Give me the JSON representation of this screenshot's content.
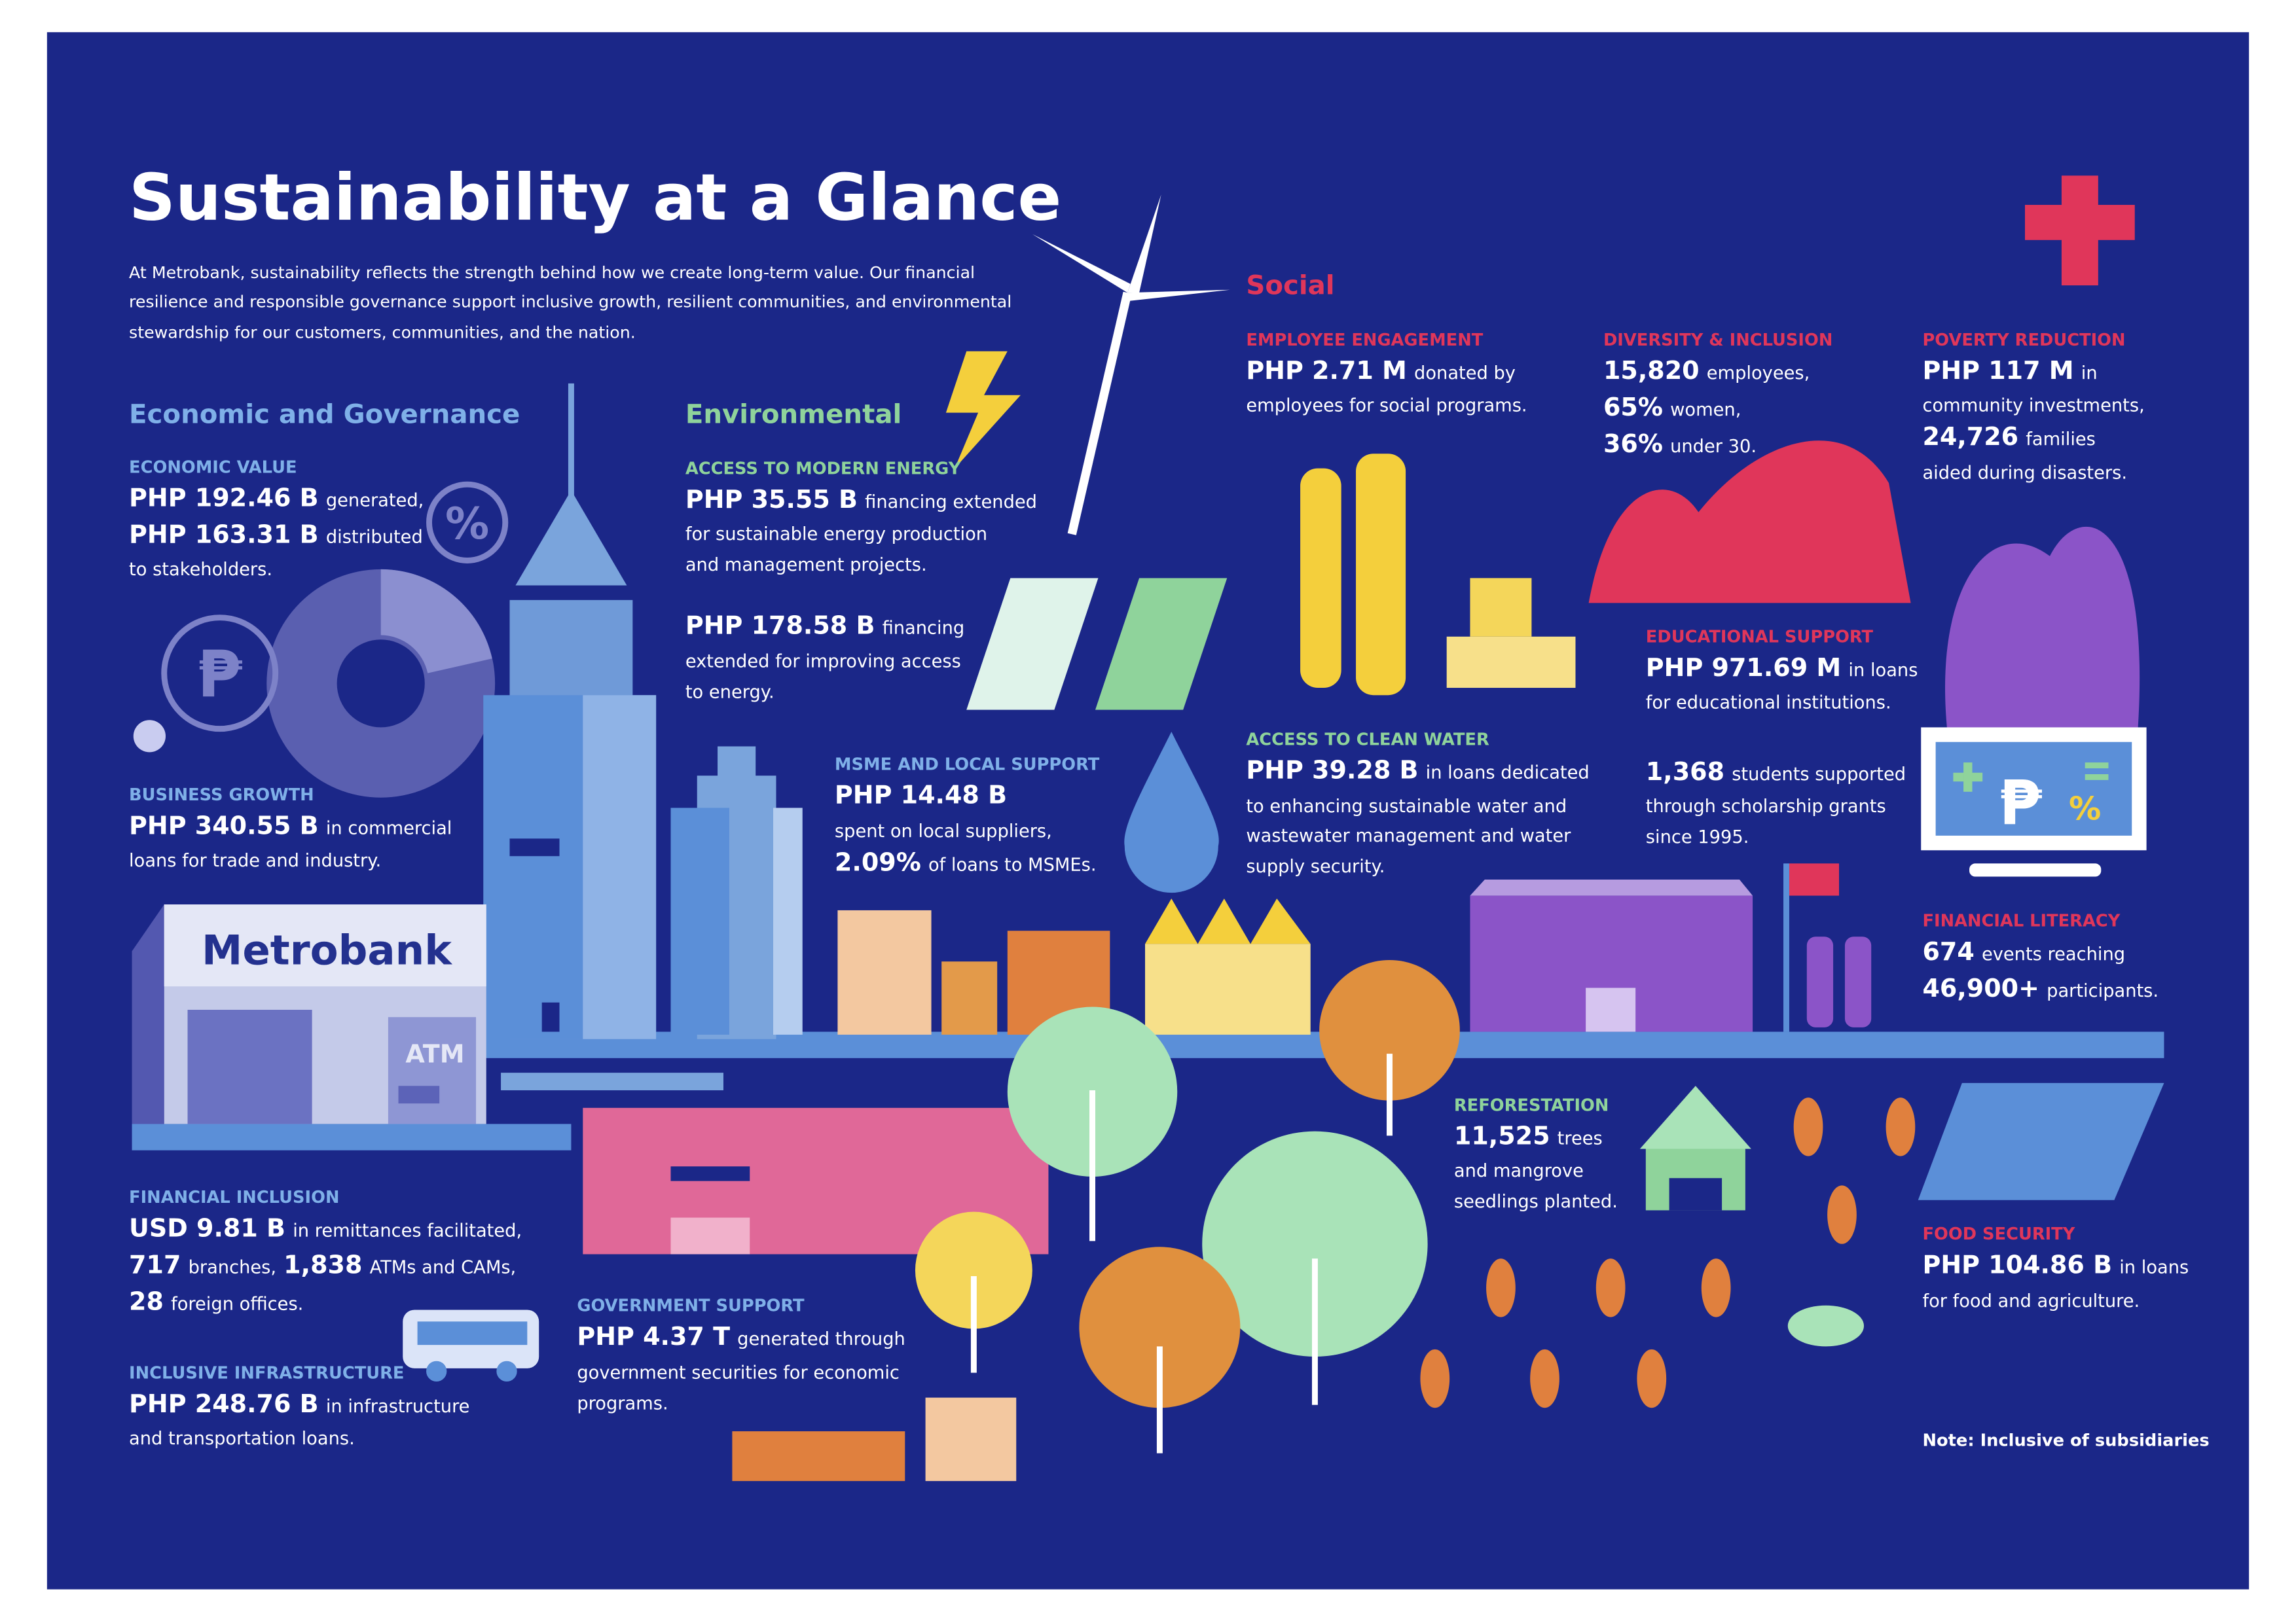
{
  "header": {
    "title": "Sustainability at a Glance",
    "intro": [
      "At Metrobank, sustainability reflects the strength behind how we create long-term value. Our financial",
      "resilience and responsible governance support inclusive growth, resilient communities, and environmental",
      "stewardship for our customers, communities, and the nation."
    ]
  },
  "sections": [
    {
      "title": "Economic and Governance"
    },
    {
      "title": "Environmental"
    },
    {
      "title": "Social"
    }
  ],
  "blocks": [
    {
      "heading": "ECONOMIC VALUE",
      "lines": [
        [
          {
            "strong": "PHP 192.46 B"
          },
          {
            "text": "generated,"
          }
        ],
        [
          {
            "strong": "PHP 163.31 B"
          },
          {
            "text": "distributed"
          }
        ],
        [
          {
            "text": "to stakeholders."
          }
        ]
      ]
    },
    {
      "heading": "BUSINESS GROWTH",
      "lines": [
        [
          {
            "strong": "PHP 340.55 B"
          },
          {
            "text": "in commercial"
          }
        ],
        [
          {
            "text": "loans for trade and industry."
          }
        ]
      ]
    },
    {
      "heading": "FINANCIAL INCLUSION",
      "lines": [
        [
          {
            "strong": "USD 9.81 B"
          },
          {
            "text": "in remittances facilitated,"
          }
        ],
        [
          {
            "strong": "717"
          },
          {
            "text": "branches,"
          },
          {
            "strong": "1,838"
          },
          {
            "text": "ATMs and CAMs,"
          }
        ],
        [
          {
            "strong": "28"
          },
          {
            "text": "foreign offices."
          }
        ]
      ]
    },
    {
      "heading": "INCLUSIVE INFRASTRUCTURE",
      "lines": [
        [
          {
            "strong": "PHP 248.76 B"
          },
          {
            "text": "in infrastructure"
          }
        ],
        [
          {
            "text": "and transportation loans."
          }
        ]
      ]
    },
    {
      "heading": "ACCESS TO MODERN ENERGY",
      "lines": [
        [
          {
            "strong": "PHP 35.55 B"
          },
          {
            "text": "financing extended"
          }
        ],
        [
          {
            "text": "for sustainable energy production"
          }
        ],
        [
          {
            "text": "and management projects."
          }
        ],
        [
          {
            "strong": "PHP 178.58 B"
          },
          {
            "text": "financing"
          }
        ],
        [
          {
            "text": "extended for improving access"
          }
        ],
        [
          {
            "text": "to energy."
          }
        ]
      ]
    },
    {
      "heading": "MSME AND LOCAL SUPPORT",
      "lines": [
        [
          {
            "strong": "PHP 14.48 B"
          }
        ],
        [
          {
            "text": "spent on local suppliers,"
          }
        ],
        [
          {
            "strong": "2.09%"
          },
          {
            "text": "of loans to MSMEs."
          }
        ]
      ]
    },
    {
      "heading": "GOVERNMENT SUPPORT",
      "lines": [
        [
          {
            "strong": "PHP 4.37 T"
          },
          {
            "text": "generated through"
          }
        ],
        [
          {
            "text": "government securities for economic"
          }
        ],
        [
          {
            "text": "programs."
          }
        ]
      ]
    },
    {
      "heading": "EMPLOYEE ENGAGEMENT",
      "lines": [
        [
          {
            "strong": "PHP 2.71 M"
          },
          {
            "text": "donated by"
          }
        ],
        [
          {
            "text": "employees for social programs."
          }
        ]
      ]
    },
    {
      "heading": "DIVERSITY & INCLUSION",
      "lines": [
        [
          {
            "strong": "15,820"
          },
          {
            "text": "employees,"
          }
        ],
        [
          {
            "strong": "65%"
          },
          {
            "text": "women,"
          }
        ],
        [
          {
            "strong": "36%"
          },
          {
            "text": "under 30."
          }
        ]
      ]
    },
    {
      "heading": "POVERTY REDUCTION",
      "lines": [
        [
          {
            "strong": "PHP 117 M"
          },
          {
            "text": "in"
          }
        ],
        [
          {
            "text": "community investments,"
          }
        ],
        [
          {
            "strong": "24,726"
          },
          {
            "text": "families"
          }
        ],
        [
          {
            "text": "aided during disasters."
          }
        ]
      ]
    },
    {
      "heading": "EDUCATIONAL SUPPORT",
      "lines": [
        [
          {
            "strong": "PHP 971.69 M"
          },
          {
            "text": "in loans"
          }
        ],
        [
          {
            "text": "for educational institutions."
          }
        ],
        [
          {
            "strong": "1,368"
          },
          {
            "text": "students supported"
          }
        ],
        [
          {
            "text": "through scholarship grants"
          }
        ],
        [
          {
            "text": "since 1995."
          }
        ]
      ]
    },
    {
      "heading": "ACCESS TO CLEAN WATER",
      "lines": [
        [
          {
            "strong": "PHP 39.28 B"
          },
          {
            "text": "in loans dedicated"
          }
        ],
        [
          {
            "text": "to enhancing sustainable water and"
          }
        ],
        [
          {
            "text": "wastewater management and water"
          }
        ],
        [
          {
            "text": "supply security."
          }
        ]
      ]
    },
    {
      "heading": "FINANCIAL LITERACY",
      "lines": [
        [
          {
            "strong": "674"
          },
          {
            "text": "events reaching"
          }
        ],
        [
          {
            "strong": "46,900+"
          },
          {
            "text": "participants."
          }
        ]
      ]
    },
    {
      "heading": "REFORESTATION",
      "lines": [
        [
          {
            "strong": "11,525"
          },
          {
            "text": "trees"
          }
        ],
        [
          {
            "text": "and mangrove"
          }
        ],
        [
          {
            "text": "seedlings planted."
          }
        ]
      ]
    },
    {
      "heading": "FOOD SECURITY",
      "lines": [
        [
          {
            "strong": "PHP 104.86 B"
          },
          {
            "text": "in loans"
          }
        ],
        [
          {
            "text": "for food and agriculture."
          }
        ]
      ]
    }
  ],
  "illustration": {
    "bank_sign": "Metrobank",
    "atm": "ATM",
    "percent": "%",
    "peso": "₱"
  },
  "note": "Note: Inclusive of subsidiaries"
}
